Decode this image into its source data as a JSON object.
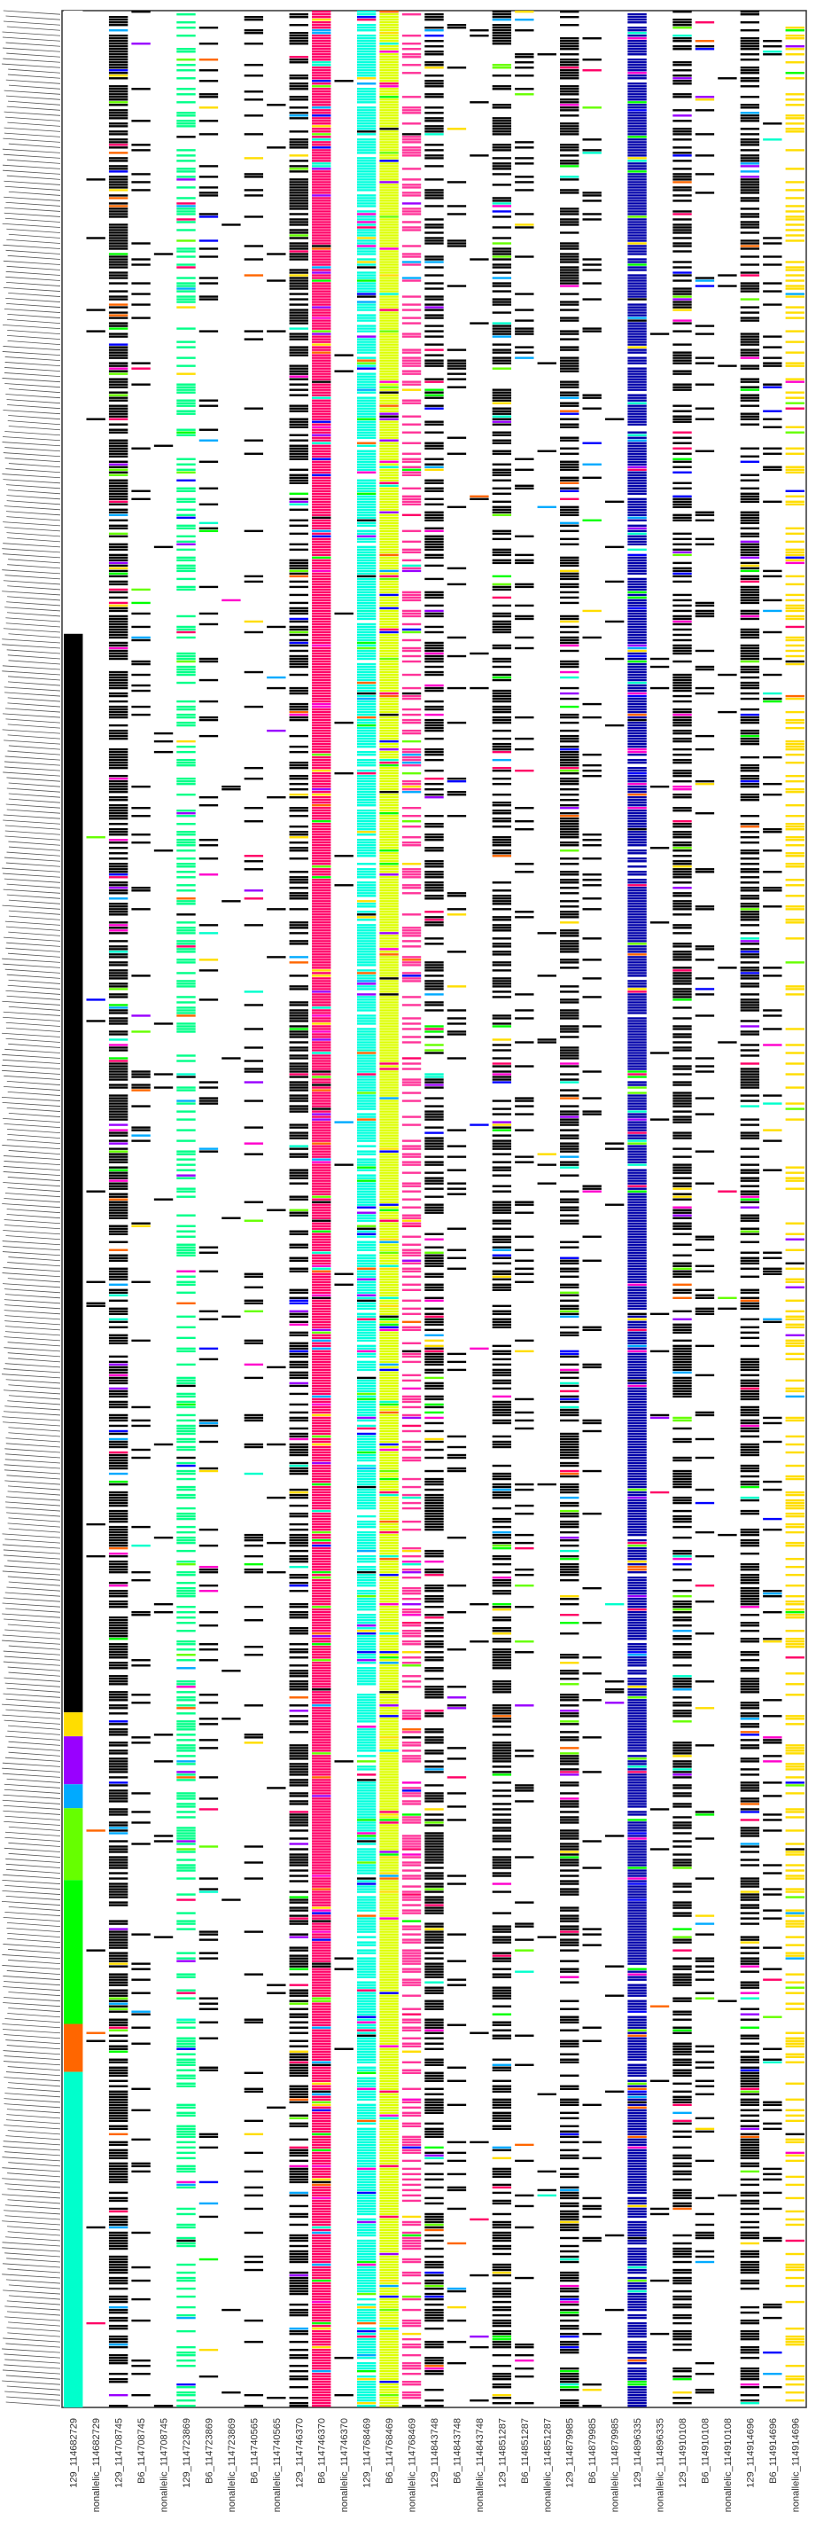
{
  "chart_data": {
    "type": "heatmap",
    "title": "",
    "xlabel": "",
    "ylabel": "",
    "legend": "none",
    "grid": false,
    "row_labels_note": "",
    "columns": [
      "129_114682729",
      "nonallelic_114682729",
      "129_114708745",
      "B6_114708745",
      "nonallelic_114708745",
      "129_114723869",
      "B6_114723869",
      "nonallelic_114723869",
      "B6_114740565",
      "nonallelic_114740565",
      "129_114746370",
      "B6_114746370",
      "nonallelic_114746370",
      "129_114768469",
      "B6_114768469",
      "nonallelic_114768469",
      "129_114843748",
      "B6_114843748",
      "nonallelic_114843748",
      "129_114851287",
      "B6_114851287",
      "nonallelic_114851287",
      "129_114879985",
      "B6_114879985",
      "nonallelic_114879985",
      "129_114896335",
      "nonallelic_114896335",
      "129_114910108",
      "B6_114910108",
      "nonallelic_114910108",
      "129_114914696",
      "B6_114914696",
      "nonallelic_114914696"
    ],
    "column_colors": {
      "129_114682729": "#00ffcc",
      "129_114708745": "#000000",
      "129_114723869": "#00ff88",
      "129_114746370": "#000000",
      "B6_114746370": "#ff0066",
      "129_114768469": "#00ffdd",
      "B6_114768469": "#ddff00",
      "nonallelic_114768469": "#ff3399",
      "129_114896335": "#0000aa",
      "nonallelic_114914696": "#ffdd00"
    },
    "y_range": [
      0,
      1
    ],
    "notes": "Dense binary-like presence matrix; each row is a sample, each column a marker; colored dashes indicate presence."
  }
}
